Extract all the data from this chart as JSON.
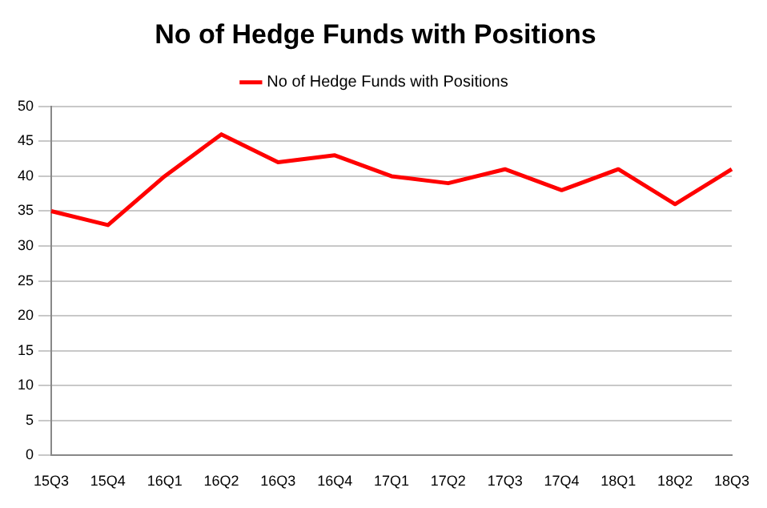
{
  "chart_data": {
    "type": "line",
    "title": "No of Hedge Funds with Positions",
    "categories": [
      "15Q3",
      "15Q4",
      "16Q1",
      "16Q2",
      "16Q3",
      "16Q4",
      "17Q1",
      "17Q2",
      "17Q3",
      "17Q4",
      "18Q1",
      "18Q2",
      "18Q3"
    ],
    "series": [
      {
        "name": "No of Hedge Funds with Positions",
        "color": "#ff0000",
        "values": [
          35,
          33,
          40,
          46,
          42,
          43,
          40,
          39,
          41,
          38,
          41,
          36,
          41
        ]
      }
    ],
    "ylim": [
      0,
      50
    ],
    "yticks": [
      0,
      5,
      10,
      15,
      20,
      25,
      30,
      35,
      40,
      45,
      50
    ],
    "grid": "y",
    "legend": "top",
    "marker": "none",
    "line_style": "solid"
  }
}
